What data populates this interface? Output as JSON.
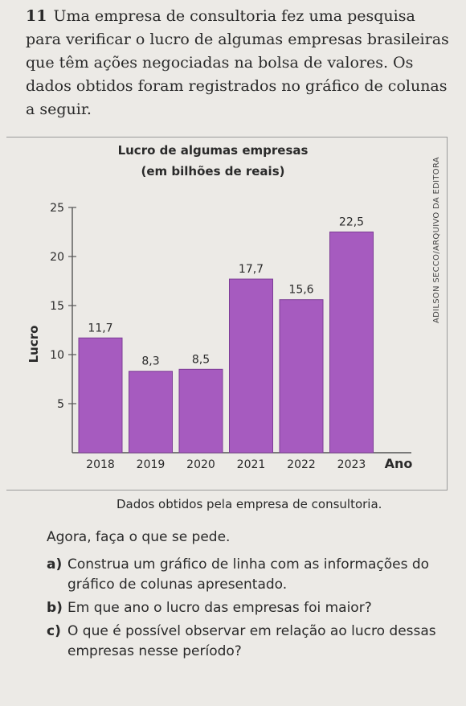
{
  "problem": {
    "number": "11",
    "text": "Uma empresa de consultoria fez uma pesquisa para verificar o lucro de algumas empresas brasileiras que têm ações negociadas na bolsa de valores. Os dados obtidos foram registrados no gráfico de colunas a seguir."
  },
  "photo_credit": "ADILSON SECCO/ARQUIVO DA EDITORA",
  "chart_data": {
    "type": "bar",
    "title": "Lucro de algumas empresas",
    "subtitle": "(em bilhões de reais)",
    "xlabel": "Ano",
    "ylabel": "Lucro",
    "categories": [
      "2018",
      "2019",
      "2020",
      "2021",
      "2022",
      "2023"
    ],
    "values": [
      11.7,
      8.3,
      8.5,
      17.7,
      15.6,
      22.5
    ],
    "value_labels": [
      "11,7",
      "8,3",
      "8,5",
      "17,7",
      "15,6",
      "22,5"
    ],
    "yticks": [
      5,
      10,
      15,
      20,
      25
    ],
    "ylim": [
      0,
      25
    ],
    "bar_color": "#a65bbf",
    "grid": false
  },
  "source_note": "Dados obtidos pela empresa de consultoria.",
  "prompt": "Agora, faça o que se pede.",
  "questions": [
    {
      "letter": "a)",
      "text": "Construa um gráfico de linha com as informações do gráfico de colunas apresentado."
    },
    {
      "letter": "b)",
      "text": "Em que ano o lucro das empresas foi maior?"
    },
    {
      "letter": "c)",
      "text": "O que é possível observar em relação ao lucro dessas empresas nesse período?"
    }
  ]
}
